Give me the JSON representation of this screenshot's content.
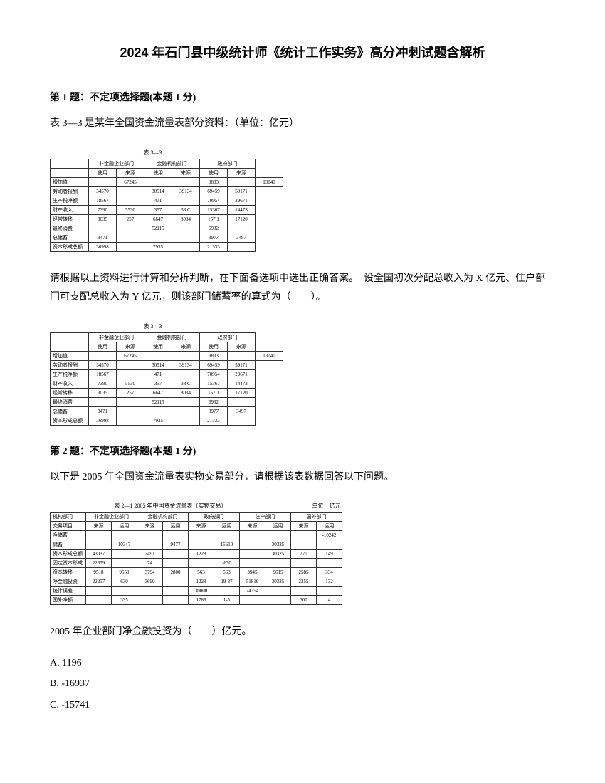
{
  "title": "2024 年石门县中级统计师《统计工作实务》高分冲刺试题含解析",
  "q1": {
    "header": "第 1 题：不定项选择题(本题 1 分)",
    "intro": "表 3—3 是某年全国资金流量表部分资料：（单位：亿元）",
    "prompt": "请根据以上资料进行计算和分析判断，在下面备选项中选出正确答案。　设全国初次分配总收入为 X 亿元、住户部门可支配总收入为 Y 亿元，则该部门储蓄率的算式为（　　）。",
    "table": {
      "caption": "表 3—3",
      "group_headers": [
        "非金融企业部门",
        "金融机构部门",
        "政府部门"
      ],
      "sub_headers": [
        "使用",
        "来源",
        "使用",
        "来源",
        "使用",
        "来源"
      ],
      "rows": [
        [
          "增加值",
          "",
          "67245",
          "",
          "",
          "9833",
          "",
          "13040"
        ],
        [
          "劳动者报酬",
          "34570",
          "",
          "30514",
          "39134",
          "69459",
          "59171"
        ],
        [
          "生产税净额",
          "18567",
          "",
          "471",
          "",
          "70954",
          "29671"
        ],
        [
          "财产收入",
          "7390",
          "5530",
          "357",
          "38 C",
          "15367",
          "14473"
        ],
        [
          "经常转移",
          "3035",
          "257",
          "6647",
          "8034",
          "157 1",
          "17120"
        ],
        [
          "最终消费",
          "",
          "",
          "52115",
          "",
          "6932",
          ""
        ],
        [
          "总储蓄",
          "3471",
          "",
          "",
          "",
          "3977",
          "3497"
        ],
        [
          "资本形成总额",
          "36998",
          "",
          "7935",
          "",
          "21333",
          ""
        ]
      ]
    }
  },
  "q2": {
    "header": "第 2 题：不定项选择题(本题 1 分)",
    "intro": "以下是 2005 年全国资金流量表实物交易部分，请根据该表数据回答以下问题。",
    "prompt": "2005 年企业部门净金融投资为（　　）亿元。",
    "options": [
      "A. 1196",
      "B. -16937",
      "C. -15741"
    ],
    "table": {
      "caption_left": "表 2—1  2005 年中国资金流量表（实物交易）",
      "caption_right": "单位：亿元",
      "group_headers": [
        "机构部门",
        "非金融企业部门",
        "金融机构部门",
        "政府部门",
        "住户部门",
        "国外部门"
      ],
      "sub_headers": [
        "交易项目",
        "来源",
        "运用",
        "来源",
        "运用",
        "来源",
        "运用",
        "来源",
        "运用",
        "来源",
        "运用"
      ],
      "rows": [
        [
          "净储蓄",
          "",
          "",
          "",
          "",
          "",
          "",
          "",
          "",
          "",
          "-10242"
        ],
        [
          "储蓄",
          "",
          "10347",
          "",
          "9477",
          "",
          "15610",
          "",
          "30325",
          "",
          ""
        ],
        [
          "资本形成总额",
          "43037",
          "",
          "2491",
          "",
          "1228",
          "",
          "",
          "30325",
          "770",
          "149"
        ],
        [
          "固定资本形成",
          "22359",
          "",
          "74",
          "",
          "",
          "-630",
          "",
          "",
          "",
          ""
        ],
        [
          "资本转移",
          "9518",
          "9559",
          "3794",
          "2800",
          "563",
          "563",
          "3945",
          "9615",
          "2585",
          "334"
        ],
        [
          "净金融投资",
          "22257",
          "630",
          "3690",
          "",
          "1228",
          "19-37",
          "51816",
          "30325",
          "2255",
          "132"
        ],
        [
          "统计误差",
          "",
          "",
          "",
          "",
          "30000",
          "",
          "74354",
          "",
          "",
          ""
        ],
        [
          "国外净额",
          "",
          "335",
          "",
          "",
          "1788",
          "1-5",
          "",
          "",
          "300",
          "4"
        ]
      ]
    }
  }
}
